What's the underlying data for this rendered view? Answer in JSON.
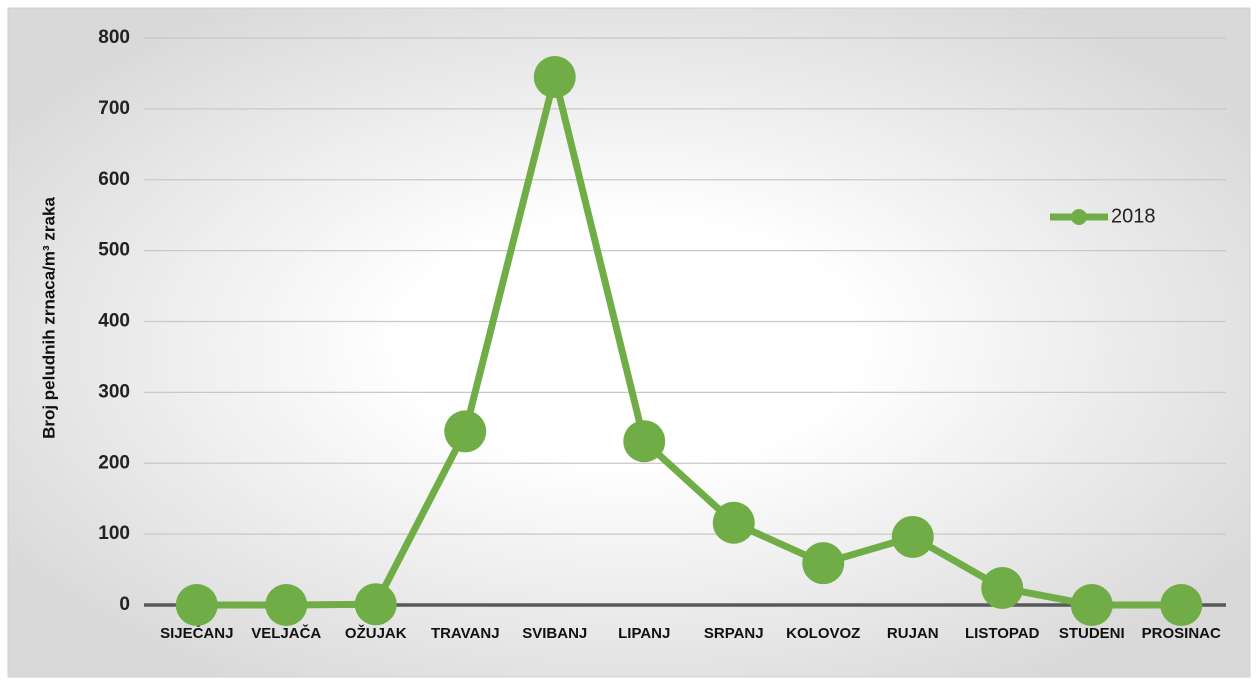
{
  "chart_data": {
    "type": "line",
    "y_label": "Broj peludnih zrnaca/m³ zraka",
    "categories": [
      "SIJEČANJ",
      "VELJAČA",
      "OŽUJAK",
      "TRAVANJ",
      "SVIBANJ",
      "LIPANJ",
      "SRPANJ",
      "KOLOVOZ",
      "RUJAN",
      "LISTOPAD",
      "STUDENI",
      "PROSINAC"
    ],
    "series": [
      {
        "name": "2018",
        "color": "#70ad47",
        "values": [
          0,
          0,
          1,
          245,
          745,
          231,
          116,
          59,
          96,
          24,
          0,
          0
        ]
      }
    ],
    "ylim": [
      0,
      800
    ],
    "yticks": [
      0,
      100,
      200,
      300,
      400,
      500,
      600,
      700,
      800
    ],
    "grid": true,
    "legend": "right"
  }
}
